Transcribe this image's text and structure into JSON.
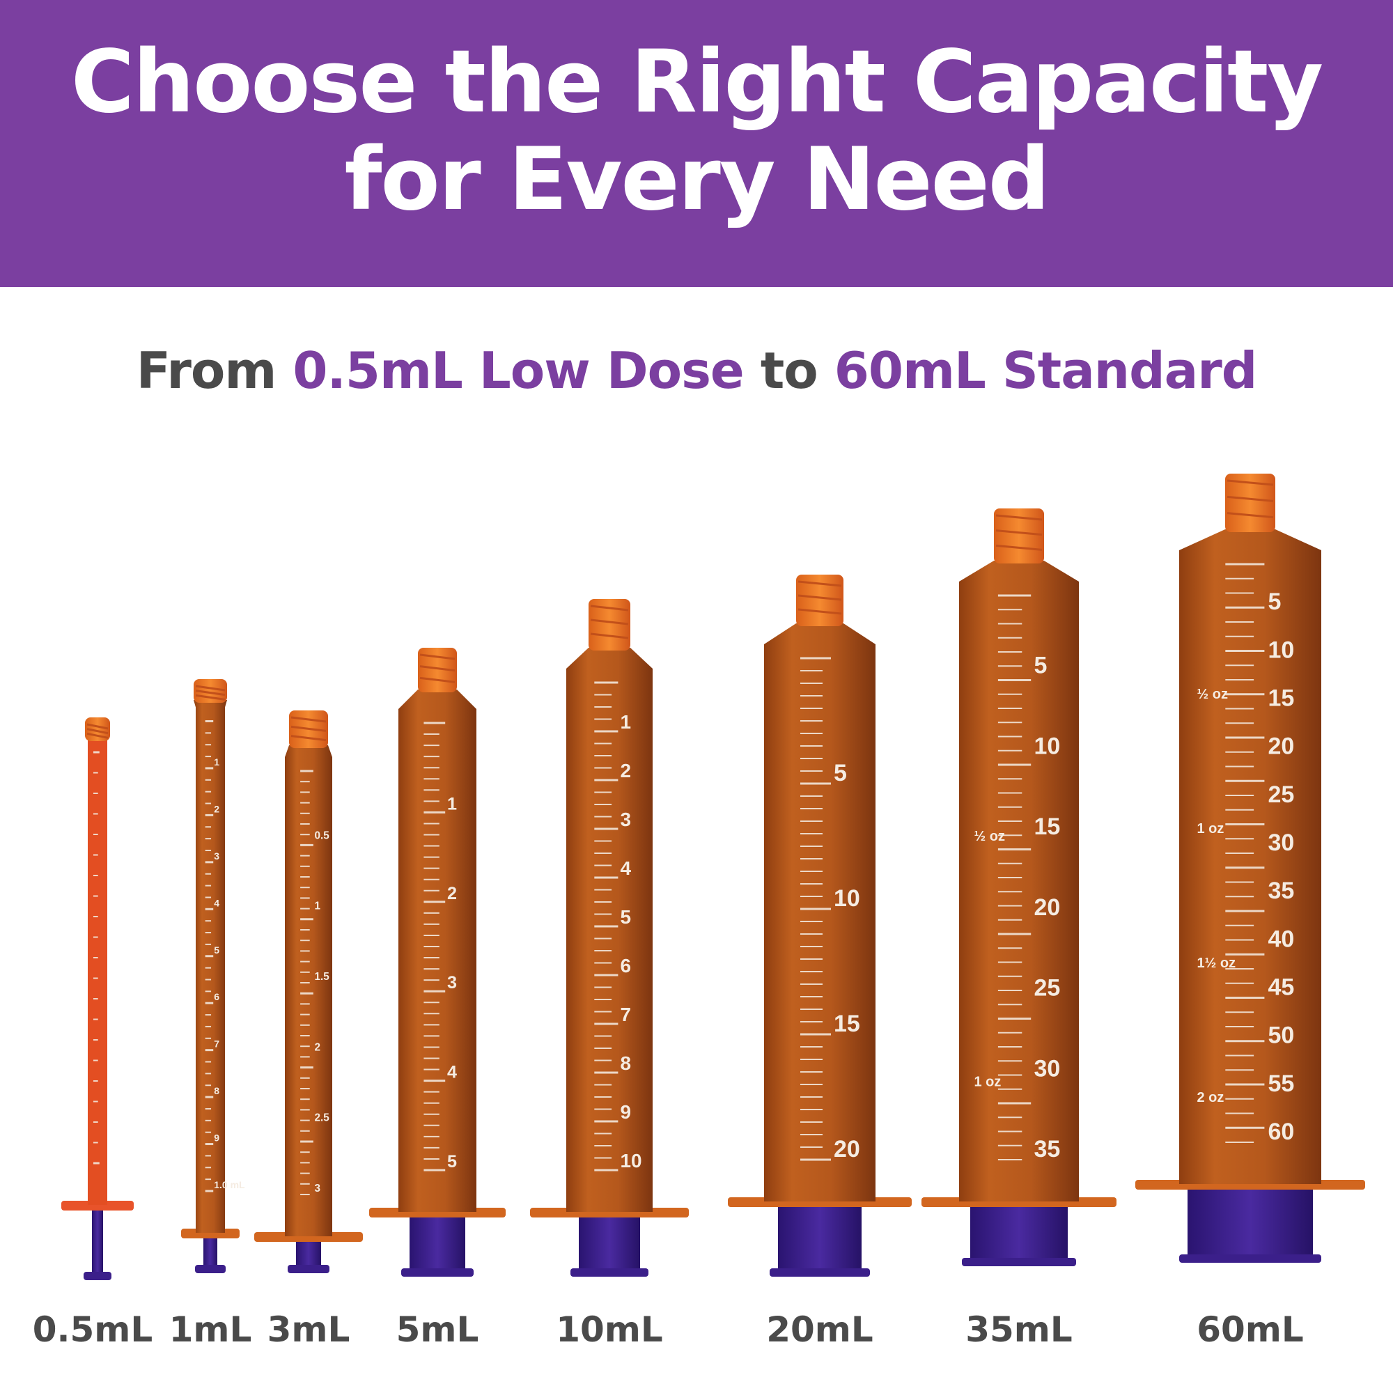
{
  "header": {
    "line1": "Choose the Right Capacity",
    "line2": "for Every Need"
  },
  "subtitle": {
    "prefix": "From ",
    "low": "0.5mL Low Dose",
    "mid": " to ",
    "high": "60mL Standard"
  },
  "colors": {
    "banner": "#7b3fa0",
    "accent": "#7b3fa0",
    "text": "#4a4a4a",
    "barrel": "#b5581c",
    "barrel_light": "#e07a2e",
    "cap": "#f07820",
    "plunger": "#3b1f8a"
  },
  "syringes": [
    {
      "label": "0.5mL",
      "ticks": []
    },
    {
      "label": "1mL",
      "ticks": [
        "1",
        "2",
        "3",
        "4",
        "5",
        "6",
        "7",
        "8",
        "9",
        "1.0 mL"
      ]
    },
    {
      "label": "3mL",
      "ticks": [
        "0.5",
        "1",
        "1.5",
        "2",
        "2.5",
        "3"
      ]
    },
    {
      "label": "5mL",
      "ticks": [
        "1",
        "2",
        "3",
        "4",
        "5"
      ]
    },
    {
      "label": "10mL",
      "ticks": [
        "1",
        "2",
        "3",
        "4",
        "5",
        "6",
        "7",
        "8",
        "9",
        "10"
      ]
    },
    {
      "label": "20mL",
      "ticks": [
        "5",
        "10",
        "15",
        "20"
      ]
    },
    {
      "label": "35mL",
      "ticks": [
        "5",
        "10",
        "15",
        "20",
        "25",
        "30",
        "35"
      ],
      "oz": [
        "½ oz",
        "1 oz"
      ]
    },
    {
      "label": "60mL",
      "ticks": [
        "5",
        "10",
        "15",
        "20",
        "25",
        "30",
        "35",
        "40",
        "45",
        "50",
        "55",
        "60"
      ],
      "oz": [
        "½ oz",
        "1 oz",
        "1½ oz",
        "2 oz"
      ]
    }
  ]
}
